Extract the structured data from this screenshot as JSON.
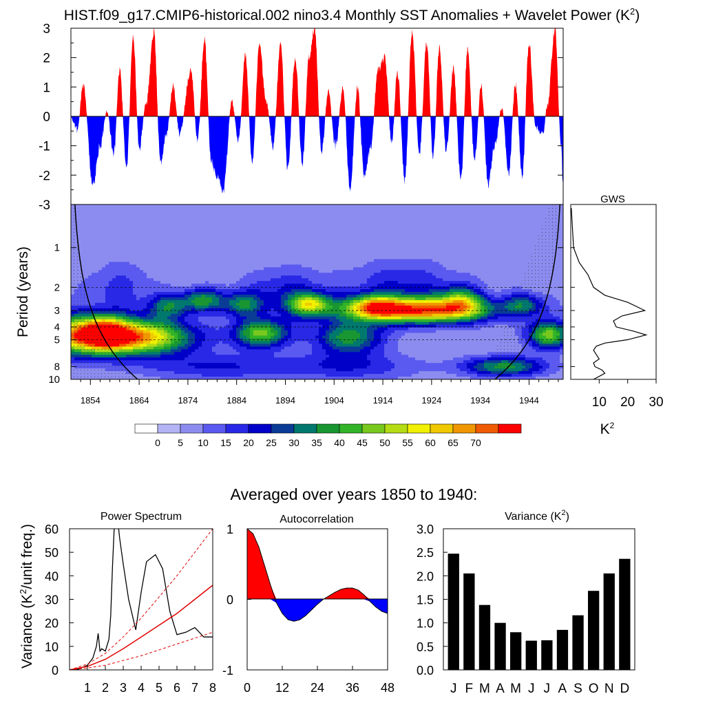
{
  "title": "HIST.f09_g17.CMIP6-historical.002 nino3.4 Monthly SST Anomalies + Wavelet Power (K",
  "title_sup": "2",
  "title_close": ")",
  "gws": {
    "title": "GWS",
    "xticks": [
      10,
      20,
      30
    ],
    "unit": "K",
    "unit_sup": "2"
  },
  "avg_title": "Averaged over years 1850 to 1940:",
  "ps": {
    "title": "Power Spectrum",
    "ylabel_a": "Variance (K",
    "ylabel_sup": "2",
    "ylabel_b": "/unit freq.)"
  },
  "ac": {
    "title": "Autocorrelation"
  },
  "var": {
    "title_a": "Variance (K",
    "title_sup": "2",
    "title_b": ")"
  },
  "colors": {
    "positive": "#ff0000",
    "negative": "#0000ff",
    "levels": [
      "#ffffff",
      "#b3b3f5",
      "#8c8cf0",
      "#5a5af0",
      "#2828e6",
      "#0000c8",
      "#0a3c96",
      "#00786e",
      "#199632",
      "#32b428",
      "#78c81e",
      "#b4dc14",
      "#f0f000",
      "#f0c800",
      "#f09600",
      "#f05a00",
      "#ff0000"
    ]
  },
  "chart_data": [
    {
      "id": "sst_anomaly",
      "type": "area",
      "ylim": [
        -3,
        3
      ],
      "yticks": [
        3,
        2,
        1,
        0,
        -1,
        -2,
        -3
      ],
      "xlim": [
        1850,
        1951
      ],
      "peaks": [
        [
          1851.3,
          -0.5
        ],
        [
          1852.5,
          1.1
        ],
        [
          1854.5,
          -2.3
        ],
        [
          1856,
          -1.0
        ],
        [
          1857.4,
          0.15
        ],
        [
          1858.8,
          -1.3
        ],
        [
          1860,
          1.6
        ],
        [
          1861.4,
          -1.7
        ],
        [
          1862.8,
          2.7
        ],
        [
          1864,
          -1.1
        ],
        [
          1865.5,
          0.5
        ],
        [
          1867,
          2.9
        ],
        [
          1868.4,
          -1.6
        ],
        [
          1869.6,
          -0.6
        ],
        [
          1871,
          1.0
        ],
        [
          1872.3,
          -0.6
        ],
        [
          1874.6,
          1.6
        ],
        [
          1876,
          -0.8
        ],
        [
          1877.4,
          2.6
        ],
        [
          1878.8,
          -1.5
        ],
        [
          1880,
          -2.1
        ],
        [
          1881.3,
          -2.5
        ],
        [
          1883,
          0.5
        ],
        [
          1884.4,
          -0.8
        ],
        [
          1885.8,
          2.1
        ],
        [
          1887.2,
          -1.5
        ],
        [
          1888.7,
          2.4
        ],
        [
          1890,
          0.6
        ],
        [
          1891.5,
          -1.0
        ],
        [
          1893,
          2.5
        ],
        [
          1894.5,
          -1.8
        ],
        [
          1896,
          2.0
        ],
        [
          1897.5,
          -1.6
        ],
        [
          1898.8,
          2.0
        ],
        [
          1900,
          3.0
        ],
        [
          1901.4,
          -1.2
        ],
        [
          1902.8,
          0.8
        ],
        [
          1904.3,
          -1.0
        ],
        [
          1905.8,
          1.0
        ],
        [
          1907.3,
          -2.5
        ],
        [
          1908.8,
          1.0
        ],
        [
          1910.2,
          -2.1
        ],
        [
          1911.5,
          -1.1
        ],
        [
          1913,
          1.6
        ],
        [
          1914.4,
          2.0
        ],
        [
          1915.8,
          -0.9
        ],
        [
          1917,
          1.5
        ],
        [
          1918.5,
          -2.2
        ],
        [
          1920,
          2.8
        ],
        [
          1921.5,
          -1.3
        ],
        [
          1923,
          2.5
        ],
        [
          1924.3,
          -1.4
        ],
        [
          1925.6,
          2.3
        ],
        [
          1927,
          -1.2
        ],
        [
          1928.5,
          1.6
        ],
        [
          1930,
          -2.2
        ],
        [
          1931.4,
          2.3
        ],
        [
          1932.8,
          -1.5
        ],
        [
          1934.2,
          1.0
        ],
        [
          1935.6,
          -2.3
        ],
        [
          1937,
          -1.0
        ],
        [
          1938.4,
          0.3
        ],
        [
          1939.8,
          -2.0
        ],
        [
          1941.2,
          1.1
        ],
        [
          1942.6,
          -2.0
        ],
        [
          1944,
          2.5
        ],
        [
          1945.4,
          -0.4
        ],
        [
          1946.8,
          -0.6
        ],
        [
          1947.8,
          0.4
        ],
        [
          1949.3,
          3.0
        ],
        [
          1950.6,
          -1.0
        ],
        [
          1951,
          -2.5
        ]
      ]
    },
    {
      "id": "wavelet_power",
      "type": "heatmap",
      "xlabel": "",
      "ylabel": "Period (years)",
      "xticks": [
        1854,
        1864,
        1874,
        1884,
        1894,
        1904,
        1914,
        1924,
        1934,
        1944
      ],
      "yticks": [
        1,
        2,
        3,
        4,
        5,
        8,
        10
      ],
      "levels": [
        0,
        5,
        10,
        15,
        20,
        25,
        30,
        35,
        40,
        45,
        50,
        55,
        60,
        65,
        70
      ],
      "blobs": [
        [
          1852,
          4.6,
          7,
          0.35,
          52
        ],
        [
          1864,
          4.8,
          8,
          0.3,
          55
        ],
        [
          1857,
          4.4,
          3,
          0.25,
          30
        ],
        [
          1899,
          2.7,
          3,
          0.2,
          42
        ],
        [
          1889,
          4.5,
          4,
          0.25,
          40
        ],
        [
          1907,
          4.8,
          5,
          0.3,
          32
        ],
        [
          1922,
          3.0,
          10,
          0.22,
          62
        ],
        [
          1912,
          2.8,
          4,
          0.2,
          35
        ],
        [
          1877,
          2.5,
          3,
          0.2,
          30
        ],
        [
          1870,
          2.8,
          3,
          0.22,
          25
        ],
        [
          1885,
          2.7,
          3,
          0.22,
          25
        ],
        [
          1930,
          2.5,
          3,
          0.25,
          30
        ],
        [
          1943,
          2.7,
          3,
          0.2,
          22
        ],
        [
          1948,
          4.6,
          3,
          0.25,
          42
        ],
        [
          1939,
          8.0,
          6,
          0.18,
          32
        ],
        [
          1894,
          2.2,
          6,
          0.45,
          14
        ],
        [
          1918,
          2.0,
          8,
          0.5,
          14
        ],
        [
          1880,
          8.0,
          12,
          0.25,
          15
        ],
        [
          1908,
          8.0,
          10,
          0.25,
          14
        ],
        [
          1860,
          2.0,
          5,
          0.5,
          10
        ]
      ],
      "global_wavelet_spectrum": {
        "xlim": [
          0,
          30
        ],
        "period": [
          0.5,
          1.0,
          1.3,
          1.6,
          2.0,
          2.3,
          2.6,
          3.0,
          3.3,
          3.6,
          4.0,
          4.3,
          4.6,
          5.0,
          5.3,
          5.6,
          6.0,
          6.5,
          7.0,
          7.5,
          8.0,
          8.5,
          9.0,
          9.5,
          10.0
        ],
        "power": [
          0.2,
          1.0,
          3.0,
          6.0,
          8.0,
          12.0,
          20.0,
          26.0,
          18.0,
          15.0,
          16.0,
          22.0,
          26.5,
          20.0,
          12.0,
          9.0,
          8.0,
          9.0,
          10.0,
          8.0,
          8.5,
          11.0,
          12.0,
          10.0,
          8.0
        ]
      }
    },
    {
      "id": "power_spectrum",
      "type": "line",
      "ylabel": "Variance (K²/unit freq.)",
      "xlim": [
        0,
        8
      ],
      "ylim": [
        0,
        60
      ],
      "xticks": [
        1,
        2,
        3,
        4,
        5,
        6,
        7,
        8
      ],
      "yticks": [
        0,
        10,
        20,
        30,
        40,
        50,
        60
      ],
      "series": [
        {
          "x": [
            0,
            0.5,
            1.0,
            1.3,
            1.5,
            1.6,
            1.7,
            1.8,
            2.0,
            2.2,
            2.3,
            2.4,
            2.5,
            2.7,
            2.8,
            3.0,
            3.3,
            3.7,
            4.0,
            4.3,
            4.8,
            5.2,
            5.6,
            6.0,
            6.5,
            7.0,
            7.5,
            8.0
          ],
          "y": [
            0,
            0.3,
            2,
            5,
            10,
            15.5,
            8,
            9,
            8,
            13,
            23,
            44,
            61,
            63,
            56,
            45,
            30,
            17,
            33,
            46,
            49,
            43,
            25,
            15,
            16,
            18,
            14,
            14
          ]
        },
        {
          "x": [
            0,
            1,
            2,
            3,
            4,
            5,
            6,
            7,
            8
          ],
          "y": [
            0,
            1.5,
            4.5,
            9,
            14,
            19,
            24,
            30,
            36
          ]
        },
        {
          "x": [
            0,
            1,
            2,
            3,
            4,
            5,
            6,
            7,
            8
          ],
          "y": [
            0,
            2.5,
            7,
            14,
            22,
            31,
            40,
            50,
            60
          ]
        },
        {
          "x": [
            0,
            1,
            2,
            3,
            4,
            5,
            6,
            7,
            8
          ],
          "y": [
            0,
            0.8,
            2,
            4,
            6,
            8.5,
            11,
            13.5,
            16
          ]
        }
      ]
    },
    {
      "id": "autocorrelation",
      "type": "area",
      "xlim": [
        0,
        48
      ],
      "ylim": [
        -1,
        1
      ],
      "xticks": [
        0,
        12,
        24,
        36,
        48
      ],
      "yticks": [
        1,
        0,
        -1
      ],
      "x": [
        0,
        2,
        4,
        6,
        8,
        10,
        12,
        14,
        16,
        18,
        20,
        22,
        24,
        26,
        28,
        30,
        32,
        34,
        36,
        38,
        40,
        42,
        44,
        46,
        48
      ],
      "y": [
        1,
        0.93,
        0.74,
        0.47,
        0.2,
        -0.05,
        -0.2,
        -0.29,
        -0.31,
        -0.29,
        -0.23,
        -0.15,
        -0.07,
        0.0,
        0.05,
        0.1,
        0.14,
        0.16,
        0.16,
        0.13,
        0.06,
        -0.03,
        -0.11,
        -0.17,
        -0.2
      ]
    },
    {
      "id": "monthly_variance",
      "type": "bar",
      "categories": [
        "J",
        "F",
        "M",
        "A",
        "M",
        "J",
        "J",
        "A",
        "S",
        "O",
        "N",
        "D"
      ],
      "values": [
        2.47,
        2.05,
        1.38,
        1.0,
        0.8,
        0.62,
        0.63,
        0.85,
        1.16,
        1.68,
        2.05,
        2.36
      ],
      "ylim": [
        0,
        3
      ],
      "yticks": [
        "0.0",
        "0.5",
        "1.0",
        "1.5",
        "2.0",
        "2.5",
        "3.0"
      ]
    }
  ]
}
